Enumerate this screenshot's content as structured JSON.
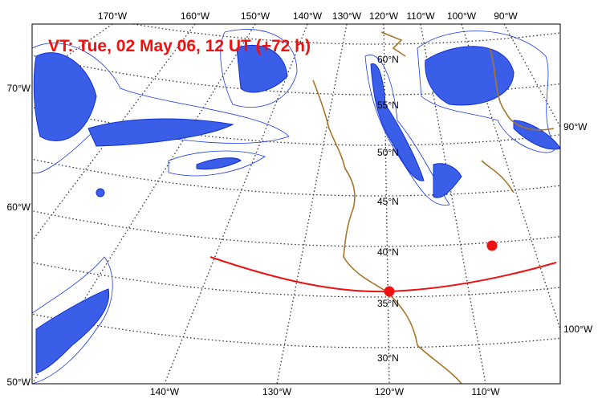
{
  "map": {
    "title": "VT:  Tue, 02 May 06, 12 UT (+72 h)",
    "top_labels": [
      "170°W",
      "160°W",
      "150°W",
      "140°W",
      "130°W",
      "120°W",
      "110°W",
      "100°W",
      "90°W"
    ],
    "left_labels": [
      "70°W",
      "60°W",
      "50°W"
    ],
    "right_labels": [
      "90°W",
      "100°W"
    ],
    "bottom_labels": [
      "140°W",
      "130°W",
      "120°W",
      "110°W"
    ],
    "lat_labels": [
      "60°N",
      "55°N",
      "50°N",
      "45°N",
      "40°N",
      "35°N",
      "30°N"
    ]
  }
}
